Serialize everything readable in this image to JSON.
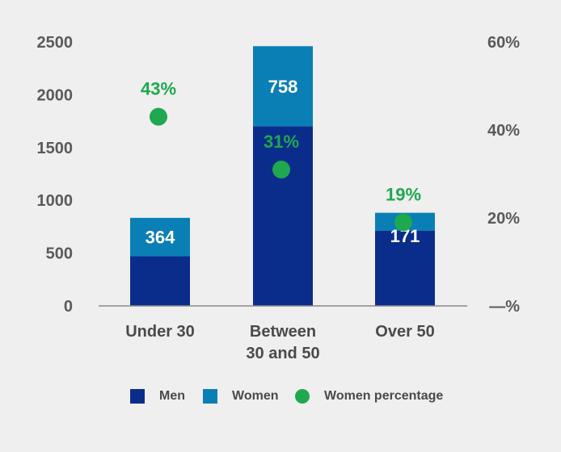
{
  "chart_data": {
    "type": "bar",
    "stacked": true,
    "categories": [
      [
        "Under 30"
      ],
      [
        "Between",
        "30 and 50"
      ],
      [
        "Over 50"
      ]
    ],
    "series": [
      {
        "name": "Men",
        "values": [
          470,
          1702,
          711
        ],
        "color": "#0a2d8c"
      },
      {
        "name": "Women",
        "values": [
          364,
          758,
          171
        ],
        "color": "#0a7fb5"
      }
    ],
    "women_data_labels": [
      "364",
      "758",
      "171"
    ],
    "line_series": {
      "name": "Women percentage",
      "values": [
        43,
        31,
        19
      ],
      "labels": [
        "43%",
        "31%",
        "19%"
      ],
      "color": "#1fa84f"
    },
    "y_left": {
      "min": 0,
      "max": 2500,
      "ticks": [
        "0",
        "500",
        "1000",
        "1500",
        "2000",
        "2500"
      ],
      "tick_values": [
        0,
        500,
        1000,
        1500,
        2000,
        2500
      ]
    },
    "y_right": {
      "min": 0,
      "max": 60,
      "ticks": [
        "—%",
        "20%",
        "40%",
        "60%"
      ],
      "tick_values": [
        0,
        20,
        40,
        60
      ]
    },
    "legend": [
      "Men",
      "Women",
      "Women percentage"
    ]
  }
}
